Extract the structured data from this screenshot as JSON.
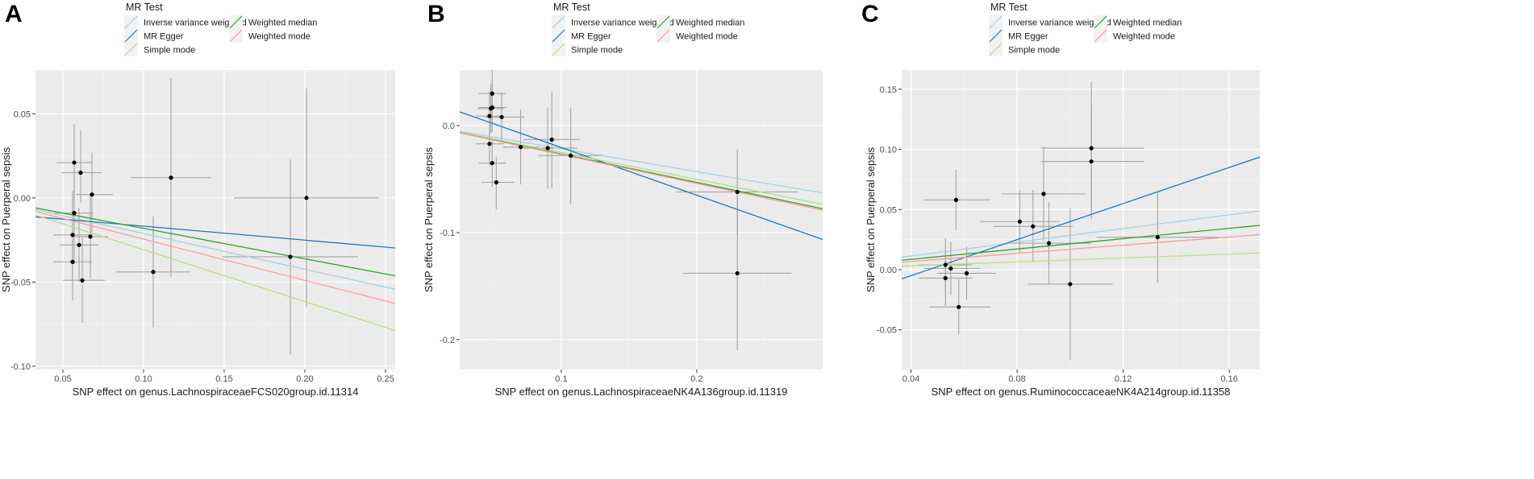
{
  "legend": {
    "title": "MR Test",
    "entries": [
      {
        "key": "ivw",
        "label": "Inverse variance weighted",
        "color": "#a6cee3"
      },
      {
        "key": "egger",
        "label": "MR Egger",
        "color": "#1f78b4"
      },
      {
        "key": "simple",
        "label": "Simple mode",
        "color": "#b2df8a"
      },
      {
        "key": "wmedian",
        "label": "Weighted median",
        "color": "#33a02c"
      },
      {
        "key": "wmode",
        "label": "Weighted mode",
        "color": "#fb9a99"
      }
    ]
  },
  "chart_data": [
    {
      "panel": "A",
      "type": "scatter",
      "xlabel": "SNP effect on genus.LachnospiraceaeFCS020group.id.11314",
      "ylabel": "SNP effect on Puerperal sepsis",
      "xlim": [
        0.033,
        0.256
      ],
      "ylim": [
        -0.102,
        0.076
      ],
      "xticks": [
        0.05,
        0.1,
        0.15,
        0.2,
        0.25
      ],
      "xtick_labels": [
        "0.05",
        "0.10",
        "0.15",
        "0.20",
        "0.25"
      ],
      "yticks": [
        -0.1,
        -0.05,
        0.0,
        0.05
      ],
      "ytick_labels": [
        "-0.10",
        "-0.05",
        "0.00",
        "0.05"
      ],
      "minor_xticks": [
        0.075,
        0.125,
        0.175,
        0.225
      ],
      "minor_yticks": [
        -0.075,
        -0.025,
        0.025,
        0.075
      ],
      "points": [
        {
          "x": 0.057,
          "y": 0.021,
          "x_lo": 0.046,
          "x_hi": 0.068,
          "y_lo": -0.002,
          "y_hi": 0.044
        },
        {
          "x": 0.061,
          "y": 0.015,
          "x_lo": 0.049,
          "x_hi": 0.074,
          "y_lo": -0.003,
          "y_hi": 0.04
        },
        {
          "x": 0.068,
          "y": 0.002,
          "x_lo": 0.058,
          "x_hi": 0.081,
          "y_lo": -0.022,
          "y_hi": 0.027
        },
        {
          "x": 0.057,
          "y": -0.009,
          "x_lo": 0.045,
          "x_hi": 0.069,
          "y_lo": -0.039,
          "y_hi": 0.02
        },
        {
          "x": 0.056,
          "y": -0.022,
          "x_lo": 0.044,
          "x_hi": 0.068,
          "y_lo": -0.048,
          "y_hi": 0.004
        },
        {
          "x": 0.067,
          "y": -0.023,
          "x_lo": 0.057,
          "x_hi": 0.078,
          "y_lo": -0.048,
          "y_hi": 0.002
        },
        {
          "x": 0.06,
          "y": -0.028,
          "x_lo": 0.048,
          "x_hi": 0.072,
          "y_lo": -0.05,
          "y_hi": -0.006
        },
        {
          "x": 0.056,
          "y": -0.038,
          "x_lo": 0.044,
          "x_hi": 0.068,
          "y_lo": -0.061,
          "y_hi": -0.015
        },
        {
          "x": 0.062,
          "y": -0.049,
          "x_lo": 0.05,
          "x_hi": 0.076,
          "y_lo": -0.074,
          "y_hi": -0.024
        },
        {
          "x": 0.117,
          "y": 0.012,
          "x_lo": 0.092,
          "x_hi": 0.142,
          "y_lo": -0.047,
          "y_hi": 0.071
        },
        {
          "x": 0.106,
          "y": -0.044,
          "x_lo": 0.083,
          "x_hi": 0.129,
          "y_lo": -0.077,
          "y_hi": -0.011
        },
        {
          "x": 0.201,
          "y": 0.0,
          "x_lo": 0.156,
          "x_hi": 0.246,
          "y_lo": -0.065,
          "y_hi": 0.065
        },
        {
          "x": 0.191,
          "y": -0.035,
          "x_lo": 0.149,
          "x_hi": 0.233,
          "y_lo": -0.093,
          "y_hi": 0.023
        }
      ],
      "lines": [
        {
          "key": "ivw",
          "intercept": 0.0,
          "slope": -0.212
        },
        {
          "key": "egger",
          "intercept": -0.0085,
          "slope": -0.083
        },
        {
          "key": "simple",
          "intercept": 0.0,
          "slope": -0.308
        },
        {
          "key": "wmedian",
          "intercept": 0.0,
          "slope": -0.181
        },
        {
          "key": "wmode",
          "intercept": 0.0,
          "slope": -0.245
        }
      ]
    },
    {
      "panel": "B",
      "type": "scatter",
      "xlabel": "SNP effect on genus.LachnospiraceaeNK4A136group.id.11319",
      "ylabel": "SNP effect on Puerperal sepsis",
      "xlim": [
        0.025,
        0.293
      ],
      "ylim": [
        -0.228,
        0.052
      ],
      "xticks": [
        0.1,
        0.2
      ],
      "xtick_labels": [
        "0.1",
        "0.2"
      ],
      "yticks": [
        -0.2,
        -0.1,
        0.0
      ],
      "ytick_labels": [
        "-0.2",
        "-0.1",
        "0.0"
      ],
      "minor_xticks": [
        0.05,
        0.15,
        0.25
      ],
      "minor_yticks": [
        -0.15,
        -0.05
      ],
      "points": [
        {
          "x": 0.049,
          "y": 0.03,
          "x_lo": 0.039,
          "x_hi": 0.059,
          "y_lo": 0.005,
          "y_hi": 0.053
        },
        {
          "x": 0.049,
          "y": 0.017,
          "x_lo": 0.039,
          "x_hi": 0.06,
          "y_lo": -0.006,
          "y_hi": 0.04
        },
        {
          "x": 0.048,
          "y": 0.016,
          "x_lo": 0.038,
          "x_hi": 0.058,
          "y_lo": -0.007,
          "y_hi": 0.039
        },
        {
          "x": 0.047,
          "y": 0.009,
          "x_lo": 0.037,
          "x_hi": 0.057,
          "y_lo": -0.014,
          "y_hi": 0.032
        },
        {
          "x": 0.056,
          "y": 0.008,
          "x_lo": 0.044,
          "x_hi": 0.073,
          "y_lo": -0.014,
          "y_hi": 0.031
        },
        {
          "x": 0.047,
          "y": -0.017,
          "x_lo": 0.037,
          "x_hi": 0.058,
          "y_lo": -0.038,
          "y_hi": 0.004
        },
        {
          "x": 0.049,
          "y": -0.035,
          "x_lo": 0.039,
          "x_hi": 0.059,
          "y_lo": -0.057,
          "y_hi": -0.013
        },
        {
          "x": 0.052,
          "y": -0.053,
          "x_lo": 0.041,
          "x_hi": 0.065,
          "y_lo": -0.078,
          "y_hi": -0.029
        },
        {
          "x": 0.07,
          "y": -0.02,
          "x_lo": 0.057,
          "x_hi": 0.084,
          "y_lo": -0.055,
          "y_hi": 0.015
        },
        {
          "x": 0.093,
          "y": -0.013,
          "x_lo": 0.072,
          "x_hi": 0.114,
          "y_lo": -0.058,
          "y_hi": 0.032
        },
        {
          "x": 0.09,
          "y": -0.021,
          "x_lo": 0.07,
          "x_hi": 0.112,
          "y_lo": -0.059,
          "y_hi": 0.017
        },
        {
          "x": 0.107,
          "y": -0.028,
          "x_lo": 0.083,
          "x_hi": 0.131,
          "y_lo": -0.073,
          "y_hi": 0.017
        },
        {
          "x": 0.23,
          "y": -0.062,
          "x_lo": 0.185,
          "x_hi": 0.275,
          "y_lo": -0.102,
          "y_hi": -0.022
        },
        {
          "x": 0.23,
          "y": -0.138,
          "x_lo": 0.19,
          "x_hi": 0.27,
          "y_lo": -0.21,
          "y_hi": -0.066
        }
      ],
      "lines": [
        {
          "key": "ivw",
          "intercept": 0.0,
          "slope": -0.215
        },
        {
          "key": "egger",
          "intercept": 0.024,
          "slope": -0.445
        },
        {
          "key": "simple",
          "intercept": 0.0,
          "slope": -0.251
        },
        {
          "key": "wmedian",
          "intercept": 0.0,
          "slope": -0.265
        },
        {
          "key": "wmode",
          "intercept": 0.0,
          "slope": -0.27
        }
      ]
    },
    {
      "panel": "C",
      "type": "scatter",
      "xlabel": "SNP effect on genus.RuminococcaceaeNK4A214group.id.11358",
      "ylabel": "SNP effect on Puerperal sepsis",
      "xlim": [
        0.0365,
        0.1715
      ],
      "ylim": [
        -0.083,
        0.166
      ],
      "xticks": [
        0.04,
        0.08,
        0.12,
        0.16
      ],
      "xtick_labels": [
        "0.04",
        "0.08",
        "0.12",
        "0.16"
      ],
      "yticks": [
        -0.05,
        0.0,
        0.05,
        0.1,
        0.15
      ],
      "ytick_labels": [
        "-0.05",
        "0.00",
        "0.05",
        "0.10",
        "0.15"
      ],
      "minor_xticks": [
        0.06,
        0.1,
        0.14
      ],
      "minor_yticks": [
        -0.025,
        0.025,
        0.075,
        0.125
      ],
      "points": [
        {
          "x": 0.057,
          "y": 0.058,
          "x_lo": 0.045,
          "x_hi": 0.07,
          "y_lo": 0.033,
          "y_hi": 0.083
        },
        {
          "x": 0.081,
          "y": 0.04,
          "x_lo": 0.066,
          "x_hi": 0.096,
          "y_lo": 0.014,
          "y_hi": 0.066
        },
        {
          "x": 0.086,
          "y": 0.036,
          "x_lo": 0.071,
          "x_hi": 0.101,
          "y_lo": 0.006,
          "y_hi": 0.066
        },
        {
          "x": 0.09,
          "y": 0.063,
          "x_lo": 0.074,
          "x_hi": 0.106,
          "y_lo": 0.024,
          "y_hi": 0.102
        },
        {
          "x": 0.092,
          "y": 0.022,
          "x_lo": 0.076,
          "x_hi": 0.108,
          "y_lo": -0.012,
          "y_hi": 0.056
        },
        {
          "x": 0.108,
          "y": 0.101,
          "x_lo": 0.089,
          "x_hi": 0.128,
          "y_lo": 0.046,
          "y_hi": 0.156
        },
        {
          "x": 0.108,
          "y": 0.09,
          "x_lo": 0.089,
          "x_hi": 0.128,
          "y_lo": 0.042,
          "y_hi": 0.137
        },
        {
          "x": 0.133,
          "y": 0.027,
          "x_lo": 0.11,
          "x_hi": 0.156,
          "y_lo": -0.011,
          "y_hi": 0.065
        },
        {
          "x": 0.1,
          "y": -0.012,
          "x_lo": 0.084,
          "x_hi": 0.116,
          "y_lo": -0.075,
          "y_hi": 0.051
        },
        {
          "x": 0.053,
          "y": 0.004,
          "x_lo": 0.043,
          "x_hi": 0.063,
          "y_lo": -0.018,
          "y_hi": 0.026
        },
        {
          "x": 0.055,
          "y": 0.001,
          "x_lo": 0.045,
          "x_hi": 0.066,
          "y_lo": -0.021,
          "y_hi": 0.023
        },
        {
          "x": 0.053,
          "y": -0.007,
          "x_lo": 0.043,
          "x_hi": 0.063,
          "y_lo": -0.03,
          "y_hi": 0.016
        },
        {
          "x": 0.061,
          "y": -0.003,
          "x_lo": 0.05,
          "x_hi": 0.072,
          "y_lo": -0.025,
          "y_hi": 0.019
        },
        {
          "x": 0.058,
          "y": -0.031,
          "x_lo": 0.047,
          "x_hi": 0.07,
          "y_lo": -0.054,
          "y_hi": -0.008
        }
      ],
      "lines": [
        {
          "key": "ivw",
          "intercept": 0.0,
          "slope": 0.285
        },
        {
          "key": "egger",
          "intercept": -0.035,
          "slope": 0.75
        },
        {
          "key": "simple",
          "intercept": 0.0,
          "slope": 0.081
        },
        {
          "key": "wmedian",
          "intercept": 0.0,
          "slope": 0.215
        },
        {
          "key": "wmode",
          "intercept": 0.0,
          "slope": 0.17
        }
      ]
    }
  ]
}
